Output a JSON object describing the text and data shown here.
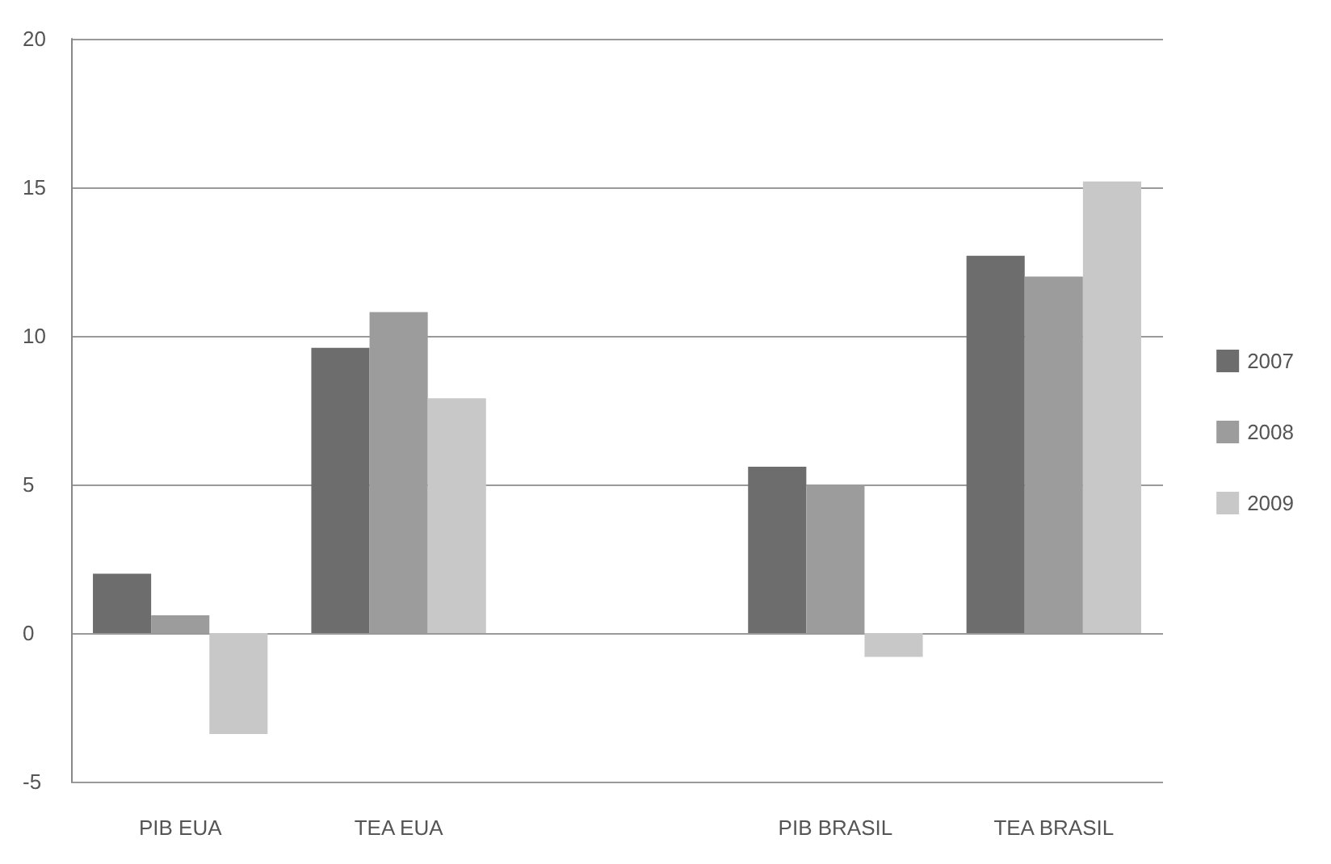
{
  "chart_data": {
    "type": "bar",
    "categories": [
      "PIB EUA",
      "TEA EUA",
      null,
      "PIB BRASIL",
      "TEA BRASIL"
    ],
    "series": [
      {
        "name": "2007",
        "color": "#6d6d6d",
        "values": [
          2.0,
          9.6,
          null,
          5.6,
          12.7
        ]
      },
      {
        "name": "2008",
        "color": "#9c9c9c",
        "values": [
          0.6,
          10.8,
          null,
          5.0,
          12.0
        ]
      },
      {
        "name": "2009",
        "color": "#c8c8c8",
        "values": [
          -3.4,
          7.9,
          null,
          -0.8,
          15.2
        ]
      }
    ],
    "ylim": [
      -5,
      20
    ],
    "yticks": [
      -5,
      0,
      5,
      10,
      15,
      20
    ],
    "grid": "y",
    "legend": "right"
  }
}
